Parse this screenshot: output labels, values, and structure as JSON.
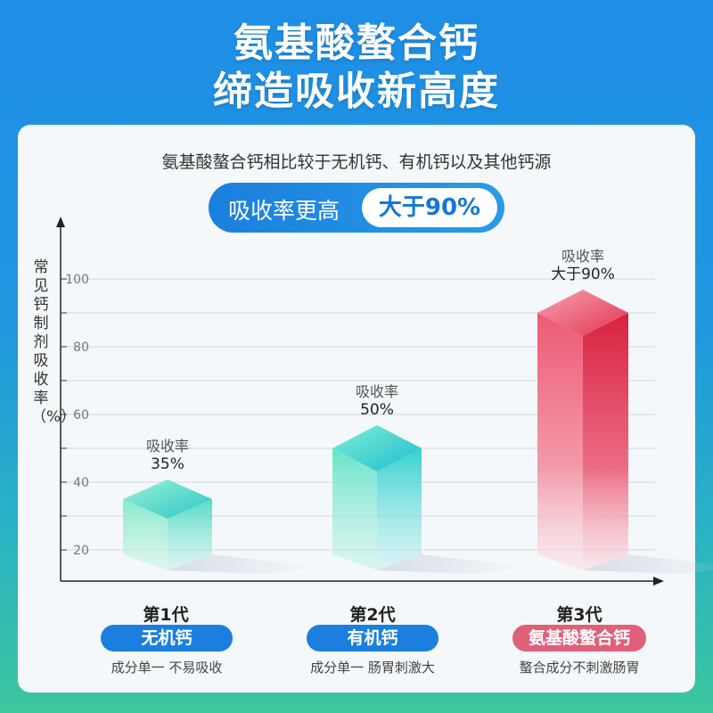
{
  "header": {
    "title_line1": "氨基酸螯合钙",
    "title_line2": "缔造吸收新高度"
  },
  "card": {
    "subtitle": "氨基酸螯合钙相比较于无机钙、有机钙以及其他钙源",
    "pill_label": "吸收率更高",
    "pill_value": "大于90%"
  },
  "colors": {
    "blue": "#1a7fde",
    "green": "#3fd9b8",
    "teal": "#2cc9c2",
    "red": "#e0354f",
    "pink_badge": "#e06079"
  },
  "chart_data": {
    "type": "bar",
    "ylabel": "常见钙制剂吸收率（%）",
    "yticks": [
      20,
      40,
      60,
      80,
      100
    ],
    "categories": [
      "第1代",
      "第2代",
      "第3代"
    ],
    "values": [
      35,
      50,
      90
    ],
    "annotations": [
      {
        "label": "吸收率",
        "value": "35%"
      },
      {
        "label": "吸收率",
        "value": "50%"
      },
      {
        "label": "吸收率",
        "value": "大于90%"
      }
    ]
  },
  "generations": [
    {
      "gen": "第1代",
      "name": "无机钙",
      "desc": "成分单一 不易吸收"
    },
    {
      "gen": "第2代",
      "name": "有机钙",
      "desc": "成分单一 肠胃刺激大"
    },
    {
      "gen": "第3代",
      "name": "氨基酸螯合钙",
      "desc": "螯合成分不刺激肠胃"
    }
  ]
}
